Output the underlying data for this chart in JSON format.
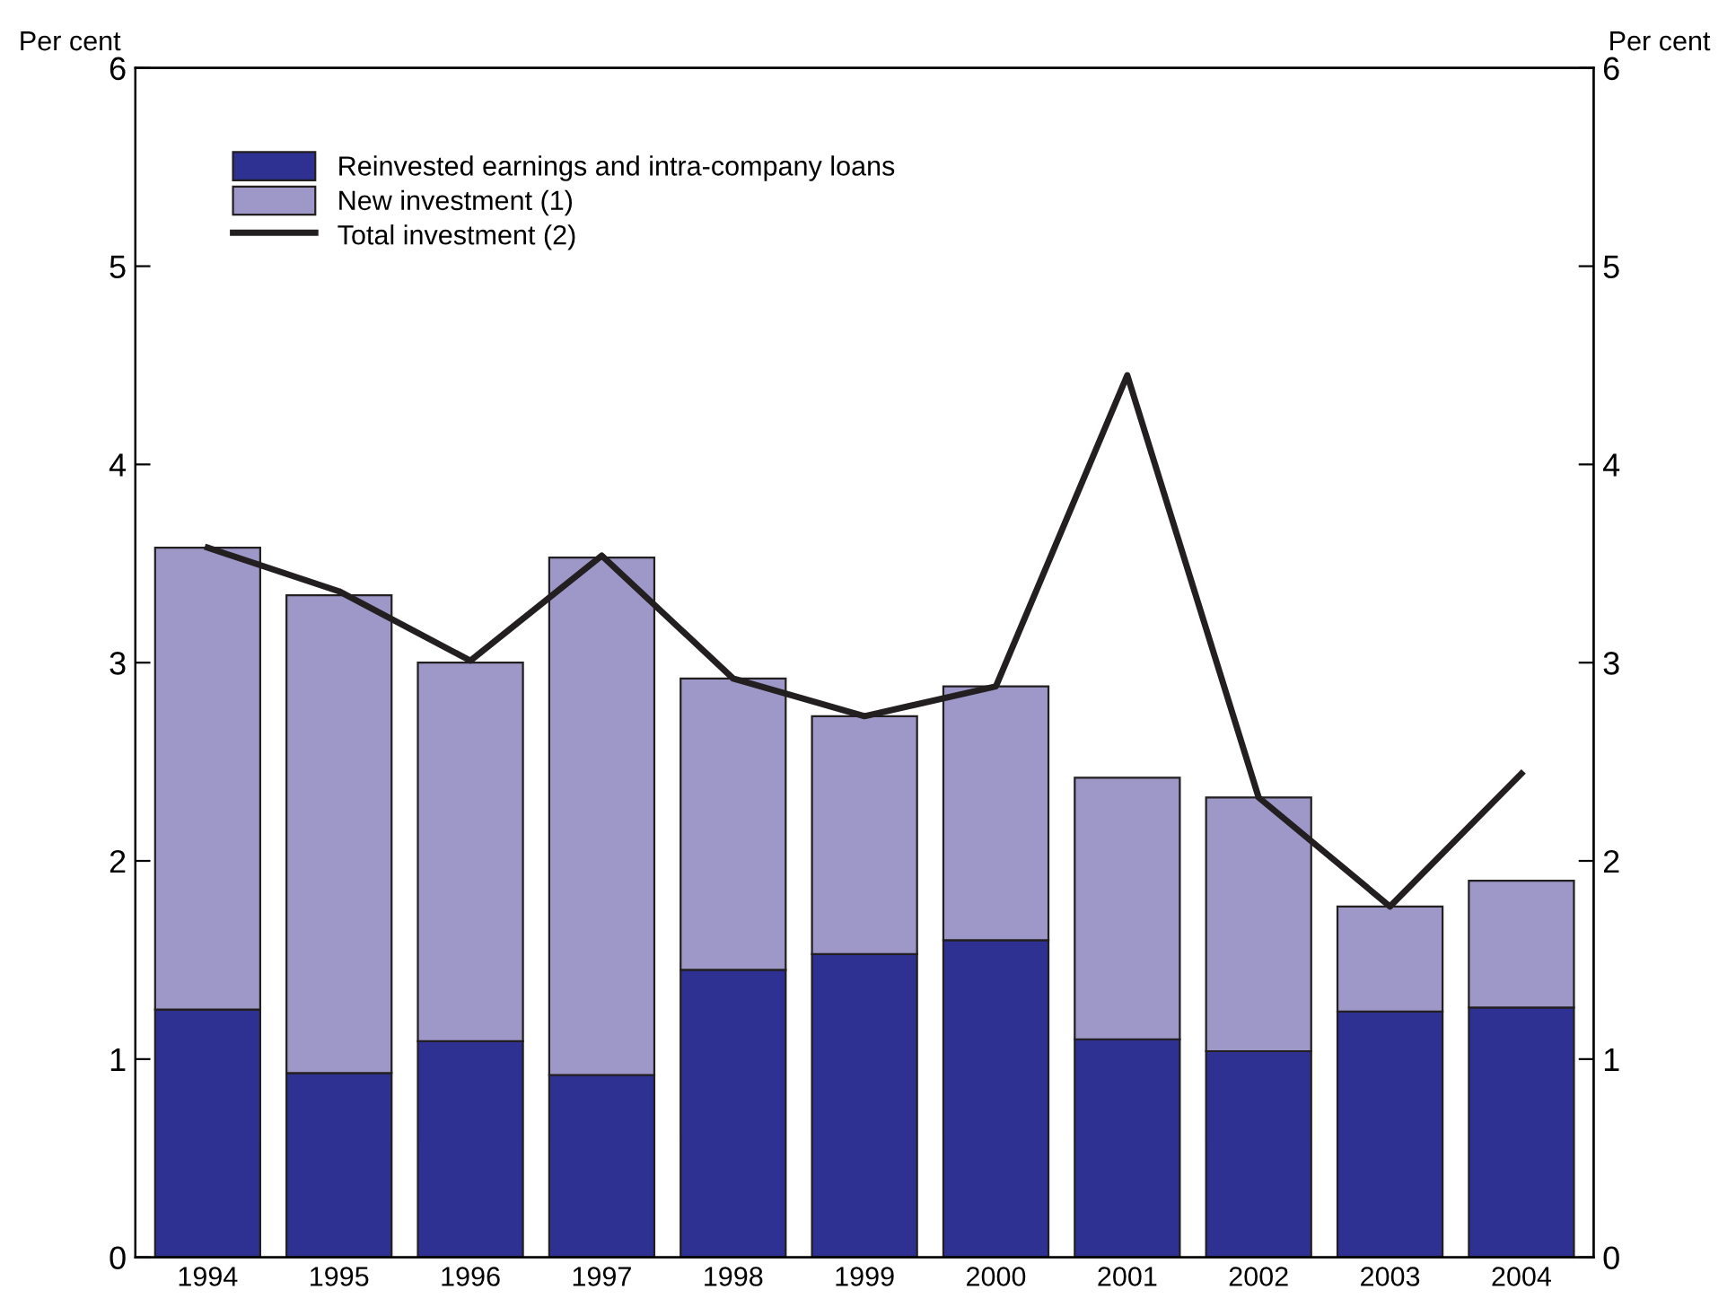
{
  "chart_data": {
    "type": "bar",
    "stacked": true,
    "ylabel": "Per cent",
    "y2label": "Per cent",
    "categories": [
      "1994",
      "1995",
      "1996",
      "1997",
      "1998",
      "1999",
      "2000",
      "2001",
      "2002",
      "2003",
      "2004"
    ],
    "series": [
      {
        "name": "Reinvested earnings and intra-company loans",
        "color": "#2e3192",
        "values": [
          1.25,
          0.93,
          1.09,
          0.92,
          1.45,
          1.53,
          1.6,
          1.1,
          1.04,
          1.24,
          1.26
        ]
      },
      {
        "name": "New investment (1)",
        "color": "#9e98c9",
        "values": [
          2.33,
          2.41,
          1.91,
          2.61,
          1.47,
          1.2,
          1.28,
          1.32,
          1.28,
          0.53,
          0.64
        ]
      },
      {
        "name": "Total investment (2)",
        "type": "line",
        "color": "#231f20",
        "values": [
          3.58,
          3.36,
          3.01,
          3.54,
          2.92,
          2.73,
          2.88,
          4.45,
          2.32,
          1.77,
          2.44
        ]
      }
    ],
    "ylim": [
      0,
      6
    ],
    "yticks": [
      0,
      1,
      2,
      3,
      4,
      5,
      6
    ],
    "y2lim": [
      0,
      6
    ],
    "y2ticks": [
      0,
      1,
      2,
      3,
      4,
      5,
      6
    ],
    "grid": false,
    "legend": "top left"
  }
}
